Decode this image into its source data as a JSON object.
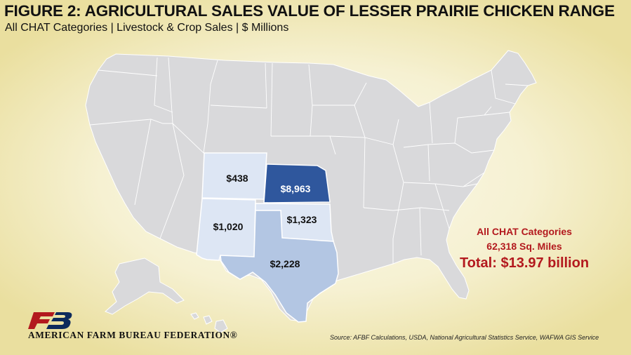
{
  "header": {
    "title": "FIGURE 2: AGRICULTURAL SALES VALUE OF LESSER PRAIRIE CHICKEN RANGE",
    "subtitle": "All CHAT Categories | Livestock & Crop Sales | $ Millions"
  },
  "map": {
    "base_color": "#d9d9db",
    "highlighted_states": [
      {
        "state": "Colorado",
        "value_label": "$438",
        "value": 438,
        "fill": "#dde6f4",
        "label_color": "#111111"
      },
      {
        "state": "Kansas",
        "value_label": "$8,963",
        "value": 8963,
        "fill": "#2f579d",
        "label_color": "#ffffff"
      },
      {
        "state": "New Mexico",
        "value_label": "$1,020",
        "value": 1020,
        "fill": "#dde6f4",
        "label_color": "#111111"
      },
      {
        "state": "Oklahoma",
        "value_label": "$1,323",
        "value": 1323,
        "fill": "#dde6f4",
        "label_color": "#111111"
      },
      {
        "state": "Texas",
        "value_label": "$2,228",
        "value": 2228,
        "fill": "#b3c6e3",
        "label_color": "#111111"
      }
    ]
  },
  "summary": {
    "line1": "All CHAT Categories",
    "line2": "62,318 Sq. Miles",
    "total": "Total: $13.97 billion",
    "color": "#b3191e"
  },
  "footer": {
    "logo_text": "FB",
    "org_name": "AMERICAN FARM BUREAU FEDERATION®",
    "source": "Source: AFBF Calculations, USDA, National Agricultural Statistics Service, WAFWA GIS Service",
    "logo_colors": [
      "#b3191e",
      "#0d2a5c"
    ]
  }
}
